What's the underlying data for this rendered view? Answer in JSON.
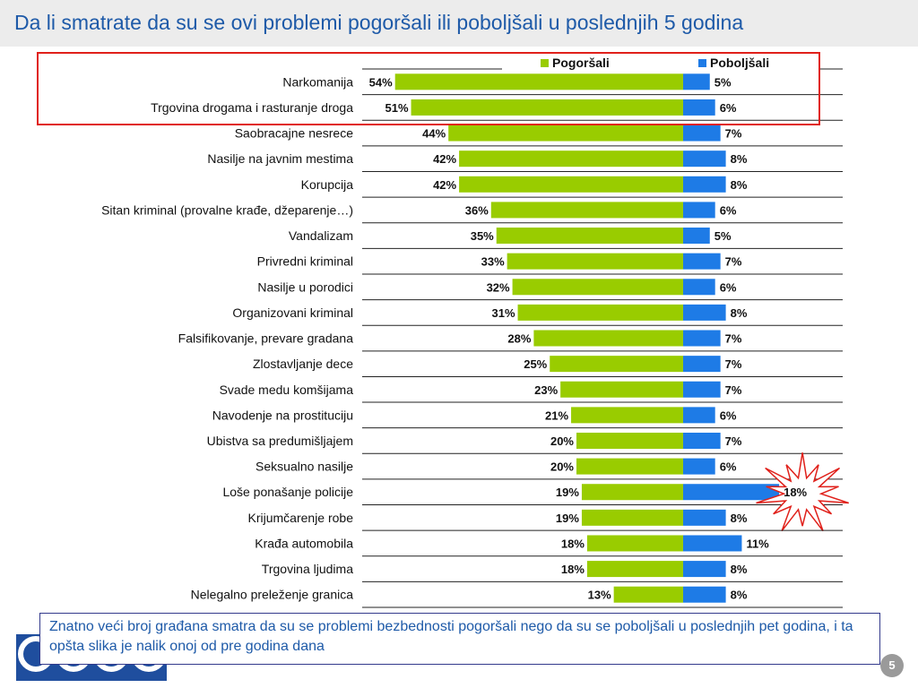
{
  "title": "Da li smatrate da su se ovi problemi pogoršali ili poboljšali u poslednjih 5 godina",
  "note": "Znatno veći broj građana smatra da su se problemi bezbednosti pogoršali nego da su se poboljšali u poslednjih pet godina, i ta opšta slika je nalik onoj od pre godina dana",
  "page_number": "5",
  "colors": {
    "worse": "#99cc00",
    "better": "#1e7be6",
    "title": "#1e5aa8",
    "highlight": "#e0201a"
  },
  "chart_data": {
    "type": "bar",
    "orientation": "horizontal-diverging",
    "legend": [
      "Pogoršali",
      "Poboljšali"
    ],
    "legend_position": "top-right",
    "categories": [
      "Narkomanija",
      "Trgovina drogama i rasturanje droga",
      "Saobracajne nesrece",
      "Nasilje na javnim mestima",
      "Korupcija",
      "Sitan kriminal (provalne krađe, džeparenje…)",
      "Vandalizam",
      "Privredni kriminal",
      "Nasilje u porodici",
      "Organizovani kriminal",
      "Falsifikovanje, prevare gradana",
      "Zlostavljanje dece",
      "Svade medu komšijama",
      "Navodenje na prostituciju",
      "Ubistva sa predumišljajem",
      "Seksualno nasilje",
      "Loše ponašanje policije",
      "Krijumčarenje robe",
      "Krađa automobila",
      "Trgovina ljudima",
      "Nelegalno preleženje granica"
    ],
    "series": [
      {
        "name": "Pogoršali",
        "values": [
          54,
          51,
          44,
          42,
          42,
          36,
          35,
          33,
          32,
          31,
          28,
          25,
          23,
          21,
          20,
          20,
          19,
          19,
          18,
          18,
          13
        ]
      },
      {
        "name": "Poboljšali",
        "values": [
          5,
          6,
          7,
          8,
          8,
          6,
          5,
          7,
          6,
          8,
          7,
          7,
          7,
          6,
          7,
          6,
          18,
          8,
          11,
          8,
          8
        ]
      }
    ],
    "value_suffix": "%",
    "highlighted_categories": [
      "Narkomanija",
      "Trgovina drogama i rasturanje droga"
    ],
    "starburst_category": "Loše ponašanje policije"
  }
}
